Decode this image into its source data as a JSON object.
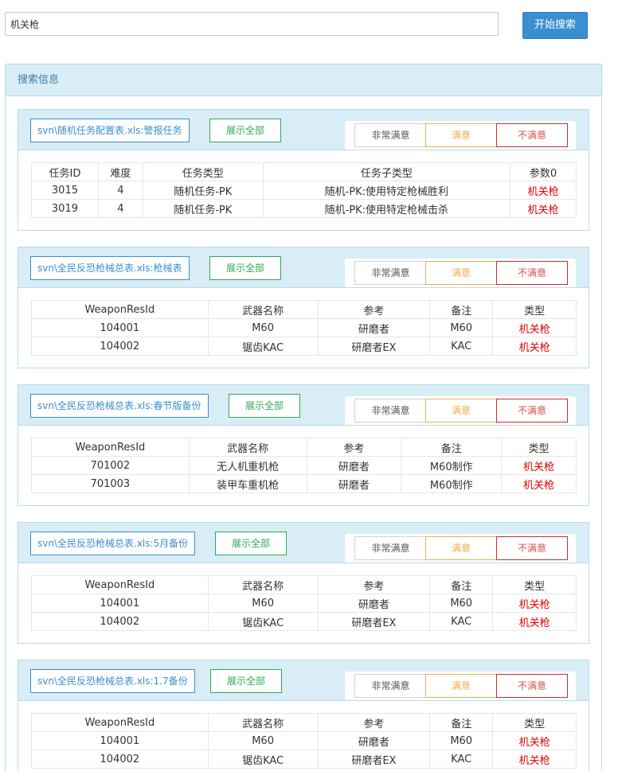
{
  "search": {
    "value": "机关枪",
    "button_label": "开始搜索"
  },
  "panel": {
    "title": "搜索信息"
  },
  "rating_labels": {
    "very_satisfied": "非常满意",
    "satisfied": "满意",
    "unsatisfied": "不满意"
  },
  "show_all_label": "展示全部",
  "cards": [
    {
      "source": "svn\\随机任务配置表.xls:警报任务",
      "headers": [
        "任务ID",
        "难度",
        "任务类型",
        "任务子类型",
        "参数0"
      ],
      "rows": [
        [
          "3015",
          "4",
          "随机任务-PK",
          "随机-PK:使用特定枪械胜利",
          "机关枪"
        ],
        [
          "3019",
          "4",
          "随机任务-PK",
          "随机-PK:使用特定枪械击杀",
          "机关枪"
        ]
      ]
    },
    {
      "source": "svn\\全民反恐枪械总表.xls:枪械表",
      "headers": [
        "WeaponResId",
        "武器名称",
        "参考",
        "备注",
        "类型"
      ],
      "rows": [
        [
          "104001",
          "M60",
          "研磨者",
          "M60",
          "机关枪"
        ],
        [
          "104002",
          "锯齿KAC",
          "研磨者EX",
          "KAC",
          "机关枪"
        ]
      ]
    },
    {
      "source": "svn\\全民反恐枪械总表.xls:春节版备份",
      "headers": [
        "WeaponResId",
        "武器名称",
        "参考",
        "备注",
        "类型"
      ],
      "rows": [
        [
          "701002",
          "无人机重机枪",
          "研磨者",
          "M60制作",
          "机关枪"
        ],
        [
          "701003",
          "装甲车重机枪",
          "研磨者",
          "M60制作",
          "机关枪"
        ]
      ]
    },
    {
      "source": "svn\\全民反恐枪械总表.xls:5月备份",
      "headers": [
        "WeaponResId",
        "武器名称",
        "参考",
        "备注",
        "类型"
      ],
      "rows": [
        [
          "104001",
          "M60",
          "研磨者",
          "M60",
          "机关枪"
        ],
        [
          "104002",
          "锯齿KAC",
          "研磨者EX",
          "KAC",
          "机关枪"
        ]
      ]
    },
    {
      "source": "svn\\全民反恐枪械总表.xls:1.7备份",
      "headers": [
        "WeaponResId",
        "武器名称",
        "参考",
        "备注",
        "类型"
      ],
      "rows": [
        [
          "104001",
          "M60",
          "研磨者",
          "M60",
          "机关枪"
        ],
        [
          "104002",
          "锯齿KAC",
          "研磨者EX",
          "KAC",
          "机关枪"
        ]
      ]
    }
  ]
}
